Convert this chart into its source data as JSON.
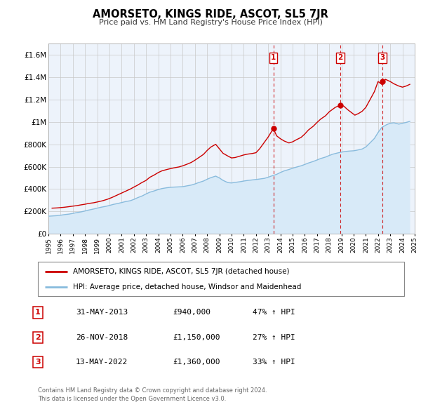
{
  "title": "AMORSETO, KINGS RIDE, ASCOT, SL5 7JR",
  "subtitle": "Price paid vs. HM Land Registry's House Price Index (HPI)",
  "legend_line1": "AMORSETO, KINGS RIDE, ASCOT, SL5 7JR (detached house)",
  "legend_line2": "HPI: Average price, detached house, Windsor and Maidenhead",
  "footer1": "Contains HM Land Registry data © Crown copyright and database right 2024.",
  "footer2": "This data is licensed under the Open Government Licence v3.0.",
  "sale_color": "#cc0000",
  "hpi_color": "#88bbdd",
  "hpi_fill_color": "#d8eaf8",
  "plot_bg_color": "#edf3fb",
  "grid_color": "#c8c8c8",
  "ylim": [
    0,
    1700000
  ],
  "yticks": [
    0,
    200000,
    400000,
    600000,
    800000,
    1000000,
    1200000,
    1400000,
    1600000
  ],
  "ytick_labels": [
    "£0",
    "£200K",
    "£400K",
    "£600K",
    "£800K",
    "£1M",
    "£1.2M",
    "£1.4M",
    "£1.6M"
  ],
  "xmin": 1995,
  "xmax": 2025,
  "sales": [
    {
      "year": 2013.42,
      "price": 940000,
      "label": "1"
    },
    {
      "year": 2018.92,
      "price": 1150000,
      "label": "2"
    },
    {
      "year": 2022.37,
      "price": 1360000,
      "label": "3"
    }
  ],
  "sale_table": [
    {
      "num": "1",
      "date": "31-MAY-2013",
      "price": "£940,000",
      "hpi": "47% ↑ HPI"
    },
    {
      "num": "2",
      "date": "26-NOV-2018",
      "price": "£1,150,000",
      "hpi": "27% ↑ HPI"
    },
    {
      "num": "3",
      "date": "13-MAY-2022",
      "price": "£1,360,000",
      "hpi": "33% ↑ HPI"
    }
  ],
  "property_data_x": [
    1995.3,
    1995.7,
    1996.0,
    1996.3,
    1996.6,
    1997.0,
    1997.3,
    1997.6,
    1998.0,
    1998.3,
    1998.7,
    1999.0,
    1999.4,
    1999.8,
    2000.2,
    2000.6,
    2001.0,
    2001.4,
    2001.7,
    2002.0,
    2002.3,
    2002.6,
    2003.0,
    2003.3,
    2003.7,
    2004.0,
    2004.3,
    2004.7,
    2005.0,
    2005.3,
    2005.7,
    2006.0,
    2006.3,
    2006.7,
    2007.0,
    2007.3,
    2007.7,
    2008.0,
    2008.3,
    2008.7,
    2009.0,
    2009.3,
    2009.7,
    2010.0,
    2010.3,
    2010.7,
    2011.0,
    2011.3,
    2011.7,
    2012.0,
    2012.3,
    2012.7,
    2013.0,
    2013.42,
    2013.7,
    2014.0,
    2014.3,
    2014.7,
    2015.0,
    2015.3,
    2015.7,
    2016.0,
    2016.3,
    2016.7,
    2017.0,
    2017.3,
    2017.7,
    2018.0,
    2018.5,
    2018.92,
    2019.2,
    2019.5,
    2019.8,
    2020.1,
    2020.4,
    2020.7,
    2021.0,
    2021.3,
    2021.7,
    2022.0,
    2022.37,
    2022.6,
    2023.0,
    2023.3,
    2023.7,
    2024.0,
    2024.3,
    2024.6
  ],
  "property_data_y": [
    230000,
    232000,
    235000,
    238000,
    242000,
    248000,
    252000,
    258000,
    265000,
    272000,
    278000,
    285000,
    295000,
    308000,
    325000,
    345000,
    365000,
    385000,
    400000,
    418000,
    435000,
    455000,
    478000,
    505000,
    528000,
    548000,
    563000,
    575000,
    583000,
    590000,
    598000,
    608000,
    620000,
    638000,
    658000,
    680000,
    710000,
    745000,
    775000,
    800000,
    760000,
    720000,
    695000,
    678000,
    682000,
    695000,
    705000,
    712000,
    718000,
    725000,
    760000,
    820000,
    865000,
    940000,
    875000,
    850000,
    830000,
    812000,
    822000,
    840000,
    862000,
    892000,
    928000,
    962000,
    995000,
    1025000,
    1055000,
    1090000,
    1130000,
    1150000,
    1140000,
    1110000,
    1085000,
    1060000,
    1075000,
    1095000,
    1130000,
    1190000,
    1270000,
    1360000,
    1330000,
    1380000,
    1360000,
    1340000,
    1320000,
    1310000,
    1320000,
    1335000
  ],
  "hpi_data_x": [
    1995.0,
    1995.3,
    1995.7,
    1996.0,
    1996.3,
    1996.7,
    1997.0,
    1997.3,
    1997.7,
    1998.0,
    1998.3,
    1998.7,
    1999.0,
    1999.3,
    1999.7,
    2000.0,
    2000.3,
    2000.7,
    2001.0,
    2001.3,
    2001.7,
    2002.0,
    2002.3,
    2002.7,
    2003.0,
    2003.3,
    2003.7,
    2004.0,
    2004.3,
    2004.7,
    2005.0,
    2005.3,
    2005.7,
    2006.0,
    2006.3,
    2006.7,
    2007.0,
    2007.3,
    2007.7,
    2008.0,
    2008.3,
    2008.7,
    2009.0,
    2009.3,
    2009.7,
    2010.0,
    2010.3,
    2010.7,
    2011.0,
    2011.3,
    2011.7,
    2012.0,
    2012.3,
    2012.7,
    2013.0,
    2013.3,
    2013.7,
    2014.0,
    2014.3,
    2014.7,
    2015.0,
    2015.3,
    2015.7,
    2016.0,
    2016.3,
    2016.7,
    2017.0,
    2017.3,
    2017.7,
    2018.0,
    2018.3,
    2018.7,
    2019.0,
    2019.3,
    2019.7,
    2020.0,
    2020.3,
    2020.7,
    2021.0,
    2021.3,
    2021.7,
    2022.0,
    2022.3,
    2022.7,
    2023.0,
    2023.3,
    2023.7,
    2024.0,
    2024.3,
    2024.6
  ],
  "hpi_data_y": [
    158000,
    160000,
    163000,
    167000,
    172000,
    177000,
    183000,
    190000,
    197000,
    205000,
    213000,
    222000,
    230000,
    238000,
    246000,
    254000,
    263000,
    272000,
    280000,
    288000,
    296000,
    308000,
    323000,
    340000,
    357000,
    372000,
    385000,
    396000,
    405000,
    412000,
    416000,
    418000,
    420000,
    422000,
    428000,
    436000,
    446000,
    458000,
    472000,
    488000,
    502000,
    516000,
    500000,
    478000,
    458000,
    455000,
    460000,
    466000,
    472000,
    477000,
    482000,
    486000,
    490000,
    496000,
    506000,
    518000,
    532000,
    548000,
    562000,
    575000,
    586000,
    596000,
    608000,
    620000,
    633000,
    647000,
    660000,
    673000,
    686000,
    700000,
    712000,
    723000,
    730000,
    736000,
    740000,
    742000,
    748000,
    758000,
    776000,
    808000,
    852000,
    905000,
    950000,
    975000,
    988000,
    992000,
    980000,
    988000,
    995000,
    1005000
  ]
}
